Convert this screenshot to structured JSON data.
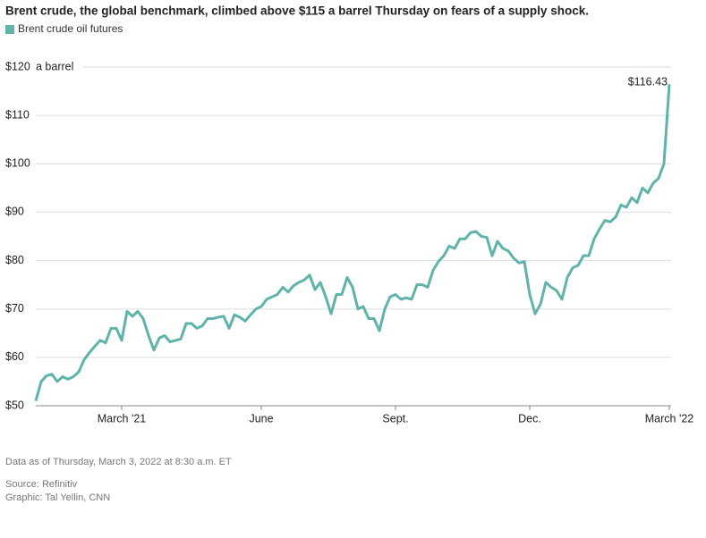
{
  "chart_data": {
    "type": "line",
    "title": "Brent crude, the global benchmark, climbed above $115 a barrel Thursday on fears of a supply shock.",
    "y_unit_label": "a barrel",
    "annotations": [
      {
        "text": "$116.43"
      }
    ],
    "categories": [
      null,
      null,
      null,
      null,
      null,
      null,
      null,
      null,
      null,
      null,
      null,
      null,
      null,
      null,
      null,
      null,
      "March '21",
      null,
      null,
      null,
      null,
      null,
      null,
      null,
      null,
      null,
      null,
      null,
      null,
      null,
      null,
      null,
      null,
      null,
      null,
      null,
      null,
      null,
      null,
      null,
      null,
      null,
      "June",
      null,
      null,
      null,
      null,
      null,
      null,
      null,
      null,
      null,
      null,
      null,
      null,
      null,
      null,
      null,
      null,
      null,
      null,
      null,
      null,
      null,
      null,
      null,
      null,
      "Sept.",
      null,
      null,
      null,
      null,
      null,
      null,
      null,
      null,
      null,
      null,
      null,
      null,
      null,
      null,
      null,
      null,
      null,
      null,
      null,
      null,
      null,
      null,
      null,
      null,
      "Dec.",
      null,
      null,
      null,
      null,
      null,
      null,
      null,
      null,
      null,
      null,
      null,
      null,
      null,
      null,
      null,
      null,
      null,
      null,
      null,
      null,
      null,
      null,
      null,
      null,
      null,
      "March '22"
    ],
    "series": [
      {
        "name": "Brent crude oil futures",
        "color": "#5fb3a8",
        "values": [
          51,
          55,
          56.2,
          56.5,
          55,
          56,
          55.5,
          56,
          57,
          59.5,
          61,
          62.3,
          63.5,
          63,
          66,
          66,
          63.5,
          69.5,
          68.5,
          69.5,
          68,
          64.5,
          61.5,
          64,
          64.5,
          63.2,
          63.5,
          63.8,
          67,
          67,
          66,
          66.5,
          68,
          68,
          68.3,
          68.5,
          66,
          68.8,
          68.3,
          67.5,
          68.8,
          70,
          70.5,
          72,
          72.5,
          73,
          74.5,
          73.5,
          74.8,
          75.5,
          76,
          77,
          74,
          75.5,
          72.5,
          69,
          73,
          73,
          76.5,
          74.5,
          70,
          70.5,
          68,
          68,
          65.5,
          70,
          72.5,
          73,
          72,
          72.3,
          72,
          75,
          75,
          74.5,
          78,
          79.8,
          81,
          83,
          82.5,
          84.5,
          84.5,
          85.8,
          86,
          85,
          84.8,
          81,
          84,
          82.5,
          82,
          80.5,
          79.5,
          79.8,
          73,
          69,
          71,
          75.5,
          74.5,
          73.8,
          72,
          76.5,
          78.5,
          79,
          81,
          81,
          84.5,
          86.5,
          88.3,
          88,
          89,
          91.5,
          91,
          93,
          92,
          95,
          94,
          96,
          97,
          100,
          116.43
        ]
      }
    ],
    "ylim": [
      50,
      120
    ],
    "yticks": [
      {
        "value": 50,
        "label": "$50"
      },
      {
        "value": 60,
        "label": "$60"
      },
      {
        "value": 70,
        "label": "$70"
      },
      {
        "value": 80,
        "label": "$80"
      },
      {
        "value": 90,
        "label": "$90"
      },
      {
        "value": 100,
        "label": "$100"
      },
      {
        "value": 110,
        "label": "$110"
      },
      {
        "value": 120,
        "label": "$120"
      }
    ],
    "grid": true,
    "notes": [
      "Data as of Thursday, March 3, 2022 at 8:30 a.m. ET",
      "Source: Refinitiv",
      "Graphic: Tal Yellin, CNN"
    ]
  }
}
